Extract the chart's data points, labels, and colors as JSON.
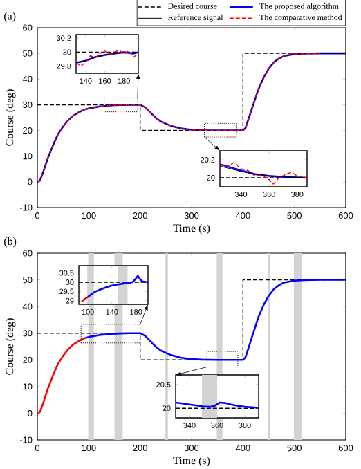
{
  "chart_data": [
    {
      "type": "line",
      "annotations": [
        "(a)"
      ],
      "xlabel": "Time (s)",
      "ylabel": "Course (deg)",
      "xlim": [
        0,
        600
      ],
      "ylim": [
        -10,
        60
      ],
      "xticks": [
        0,
        100,
        200,
        300,
        400,
        500,
        600
      ],
      "yticks": [
        -10,
        0,
        10,
        20,
        30,
        40,
        50,
        60
      ],
      "legend": "top",
      "series": [
        {
          "name": "Desired course",
          "color": "#000000",
          "line_style": "dashed",
          "x": [
            0,
            200,
            200,
            400,
            400,
            600
          ],
          "values": [
            30,
            30,
            20,
            20,
            50,
            50
          ]
        },
        {
          "name": "The proposed algorithm",
          "color": "#0000ff",
          "line_style": "solid",
          "x": [
            0,
            5,
            10,
            20,
            30,
            40,
            50,
            60,
            70,
            80,
            90,
            100,
            120,
            140,
            160,
            180,
            200,
            210,
            220,
            230,
            240,
            260,
            280,
            300,
            320,
            350,
            400,
            405,
            410,
            420,
            430,
            440,
            450,
            460,
            470,
            480,
            500,
            520,
            550,
            600
          ],
          "values": [
            0,
            0.5,
            3,
            9,
            14,
            18.5,
            21.5,
            24,
            25.8,
            27,
            28,
            28.6,
            29.3,
            29.7,
            29.9,
            30,
            30,
            29,
            27,
            25,
            23.5,
            21.8,
            20.8,
            20.3,
            20.1,
            20,
            20,
            21,
            24,
            30,
            36,
            40.5,
            44,
            46.5,
            48,
            49,
            49.7,
            49.9,
            50,
            50
          ]
        },
        {
          "name": "Reference signal",
          "color": "#000000",
          "line_style": "solid",
          "x": [
            0,
            5,
            10,
            20,
            30,
            40,
            50,
            60,
            70,
            80,
            90,
            100,
            120,
            140,
            160,
            180,
            200,
            210,
            220,
            230,
            240,
            260,
            280,
            300,
            320,
            350,
            400,
            405,
            410,
            420,
            430,
            440,
            450,
            460,
            470,
            480,
            500,
            520,
            550,
            600
          ],
          "values": [
            0,
            0.5,
            3,
            9,
            14,
            18.5,
            21.5,
            24,
            25.8,
            27,
            28,
            28.6,
            29.3,
            29.7,
            29.9,
            30,
            30,
            29,
            27,
            25,
            23.5,
            21.8,
            20.8,
            20.3,
            20.1,
            20,
            20,
            21,
            24,
            30,
            36,
            40.5,
            44,
            46.5,
            48,
            49,
            49.7,
            49.9,
            50,
            50
          ]
        },
        {
          "name": "The comparative method",
          "color": "#ff0000",
          "line_style": "dashed",
          "x": [
            0,
            5,
            10,
            20,
            30,
            40,
            50,
            60,
            70,
            80,
            90,
            100,
            120,
            140,
            160,
            180,
            200,
            210,
            220,
            230,
            240,
            260,
            280,
            300,
            320,
            350,
            400,
            405,
            410,
            420,
            430,
            440,
            450,
            460,
            470,
            480,
            500,
            520,
            550
          ],
          "values": [
            0,
            0.5,
            3,
            9,
            14,
            18.5,
            21.5,
            24,
            25.8,
            27,
            28,
            28.6,
            29.3,
            29.7,
            29.9,
            30,
            30,
            29,
            27,
            25,
            23.5,
            21.8,
            20.8,
            20.3,
            20.1,
            20,
            20,
            21,
            24,
            30,
            36,
            40.5,
            44,
            46.5,
            48,
            49,
            49.7,
            49.9,
            50
          ]
        }
      ]
    },
    {
      "type": "line",
      "xlim": [
        130,
        195
      ],
      "ylim": [
        29.7,
        30.25
      ],
      "xticks": [
        140,
        160,
        180
      ],
      "yticks": [
        29.8,
        30,
        30.2
      ],
      "series": [
        {
          "color": "#000000",
          "line_style": "dashed",
          "x": [
            130,
            195
          ],
          "values": [
            30,
            30
          ]
        },
        {
          "color": "#0000ff",
          "line_style": "solid",
          "x": [
            130,
            140,
            150,
            160,
            170,
            180,
            190,
            195
          ],
          "values": [
            29.85,
            29.88,
            29.93,
            29.96,
            29.98,
            30,
            29.98,
            30
          ]
        },
        {
          "color": "#000000",
          "line_style": "solid",
          "x": [
            130,
            140,
            150,
            160,
            170,
            180,
            190,
            195
          ],
          "values": [
            29.85,
            29.88,
            29.93,
            29.96,
            29.98,
            29.99,
            29.99,
            30
          ]
        },
        {
          "color": "#ff0000",
          "line_style": "dashed",
          "x": [
            130,
            135,
            140,
            145,
            150,
            155,
            160,
            165,
            170,
            175,
            180,
            185,
            190,
            195
          ],
          "values": [
            29.85,
            29.8,
            29.86,
            29.95,
            29.92,
            29.98,
            30.02,
            29.96,
            30,
            30.03,
            29.97,
            30.02,
            29.93,
            29.98
          ]
        }
      ]
    },
    {
      "type": "line",
      "xlim": [
        325,
        387
      ],
      "ylim": [
        19.9,
        20.3
      ],
      "xticks": [
        340,
        360,
        380
      ],
      "yticks": [
        20,
        20.2
      ],
      "series": [
        {
          "color": "#000000",
          "line_style": "dashed",
          "x": [
            325,
            387
          ],
          "values": [
            20,
            20
          ]
        },
        {
          "color": "#0000ff",
          "line_style": "solid",
          "x": [
            325,
            340,
            350,
            360,
            370,
            387
          ],
          "values": [
            20.15,
            20.08,
            20.04,
            20.02,
            20.01,
            20.0
          ]
        },
        {
          "color": "#000000",
          "line_style": "solid",
          "x": [
            325,
            340,
            350,
            360,
            370,
            387
          ],
          "values": [
            20.13,
            20.07,
            20.04,
            20.02,
            20.01,
            20.0
          ]
        },
        {
          "color": "#ff0000",
          "line_style": "dashed",
          "x": [
            325,
            330,
            335,
            340,
            345,
            350,
            355,
            360,
            363,
            367,
            372,
            376,
            380,
            387
          ],
          "values": [
            20.15,
            20.12,
            20.17,
            20.1,
            20.08,
            20.02,
            20.03,
            19.98,
            19.93,
            20.0,
            20.04,
            20.06,
            20.02,
            20.0
          ]
        }
      ]
    },
    {
      "type": "line",
      "annotations": [
        "(b)"
      ],
      "xlabel": "Time (s)",
      "ylabel": "Course (deg)",
      "xlim": [
        0,
        600
      ],
      "ylim": [
        -10,
        60
      ],
      "xticks": [
        0,
        100,
        200,
        300,
        400,
        500,
        600
      ],
      "yticks": [
        -10,
        0,
        10,
        20,
        30,
        40,
        50,
        60
      ],
      "bands": [
        {
          "axis": "x",
          "from": 99,
          "to": 110,
          "color": "#d3d3d3"
        },
        {
          "axis": "x",
          "from": 150,
          "to": 166,
          "color": "#d3d3d3"
        },
        {
          "axis": "x",
          "from": 249,
          "to": 254,
          "color": "#d3d3d3"
        },
        {
          "axis": "x",
          "from": 349,
          "to": 360,
          "color": "#d3d3d3"
        },
        {
          "axis": "x",
          "from": 449,
          "to": 453,
          "color": "#d3d3d3"
        },
        {
          "axis": "x",
          "from": 499,
          "to": 515,
          "color": "#d3d3d3"
        }
      ],
      "series": [
        {
          "color": "#000000",
          "line_style": "dashed",
          "x": [
            0,
            200,
            200,
            400,
            400,
            600
          ],
          "values": [
            30,
            30,
            20,
            20,
            50,
            50
          ]
        },
        {
          "color": "#ff0000",
          "line_style": "solid",
          "x": [
            0,
            5,
            10,
            20,
            30,
            40,
            50,
            60,
            70,
            80,
            90,
            95
          ],
          "values": [
            0,
            0.5,
            3,
            9,
            14,
            18.5,
            21.5,
            24,
            25.8,
            27,
            28,
            28.3
          ]
        },
        {
          "color": "#0000ff",
          "line_style": "solid",
          "x": [
            95,
            100,
            120,
            140,
            160,
            180,
            200,
            210,
            220,
            230,
            240,
            260,
            280,
            300,
            320,
            350,
            400,
            405,
            410,
            420,
            430,
            440,
            450,
            460,
            470,
            480,
            500,
            520,
            550,
            600
          ],
          "values": [
            28.3,
            28.6,
            29.3,
            29.7,
            29.9,
            30,
            30,
            29,
            27,
            25,
            23.5,
            21.8,
            20.8,
            20.3,
            20.1,
            20,
            20,
            21,
            24,
            30,
            36,
            40.5,
            44,
            46.5,
            48,
            49,
            49.7,
            49.9,
            50,
            50
          ]
        }
      ]
    },
    {
      "type": "line",
      "xlim": [
        85,
        200
      ],
      "ylim": [
        28.8,
        30.9
      ],
      "xticks": [
        100,
        140,
        180
      ],
      "yticks": [
        29,
        29.5,
        30,
        30.5
      ],
      "bands": [
        {
          "axis": "x",
          "from": 99,
          "to": 110,
          "color": "#d3d3d3"
        },
        {
          "axis": "x",
          "from": 150,
          "to": 166,
          "color": "#d3d3d3"
        }
      ],
      "series": [
        {
          "color": "#000000",
          "line_style": "dashed",
          "x": [
            85,
            200
          ],
          "values": [
            30,
            30
          ]
        },
        {
          "color": "#ff0000",
          "line_style": "solid",
          "x": [
            90,
            95,
            100
          ],
          "values": [
            28.95,
            29.1,
            29.2
          ]
        },
        {
          "color": "#0000ff",
          "line_style": "solid",
          "x": [
            100,
            110,
            120,
            130,
            140,
            150,
            160,
            170,
            175,
            180,
            183,
            186,
            190,
            200
          ],
          "values": [
            29.2,
            29.45,
            29.6,
            29.72,
            29.82,
            29.88,
            29.93,
            29.97,
            30.02,
            30.2,
            30.35,
            30.2,
            30.05,
            30.0
          ]
        }
      ]
    },
    {
      "type": "line",
      "xlim": [
        330,
        390
      ],
      "ylim": [
        19.8,
        20.7
      ],
      "xticks": [
        340,
        360,
        380
      ],
      "yticks": [
        20,
        20.5
      ],
      "bands": [
        {
          "axis": "x",
          "from": 349,
          "to": 360,
          "color": "#d3d3d3"
        }
      ],
      "series": [
        {
          "color": "#000000",
          "line_style": "dashed",
          "x": [
            330,
            390
          ],
          "values": [
            20,
            20
          ]
        },
        {
          "color": "#0000ff",
          "line_style": "solid",
          "x": [
            330,
            335,
            340,
            345,
            350,
            355,
            358,
            362,
            366,
            370,
            375,
            380,
            385,
            390
          ],
          "values": [
            20.12,
            20.1,
            20.08,
            20.06,
            20.04,
            20.03,
            20.05,
            20.12,
            20.11,
            20.08,
            20.05,
            20.03,
            20.02,
            20.01
          ]
        }
      ]
    }
  ]
}
